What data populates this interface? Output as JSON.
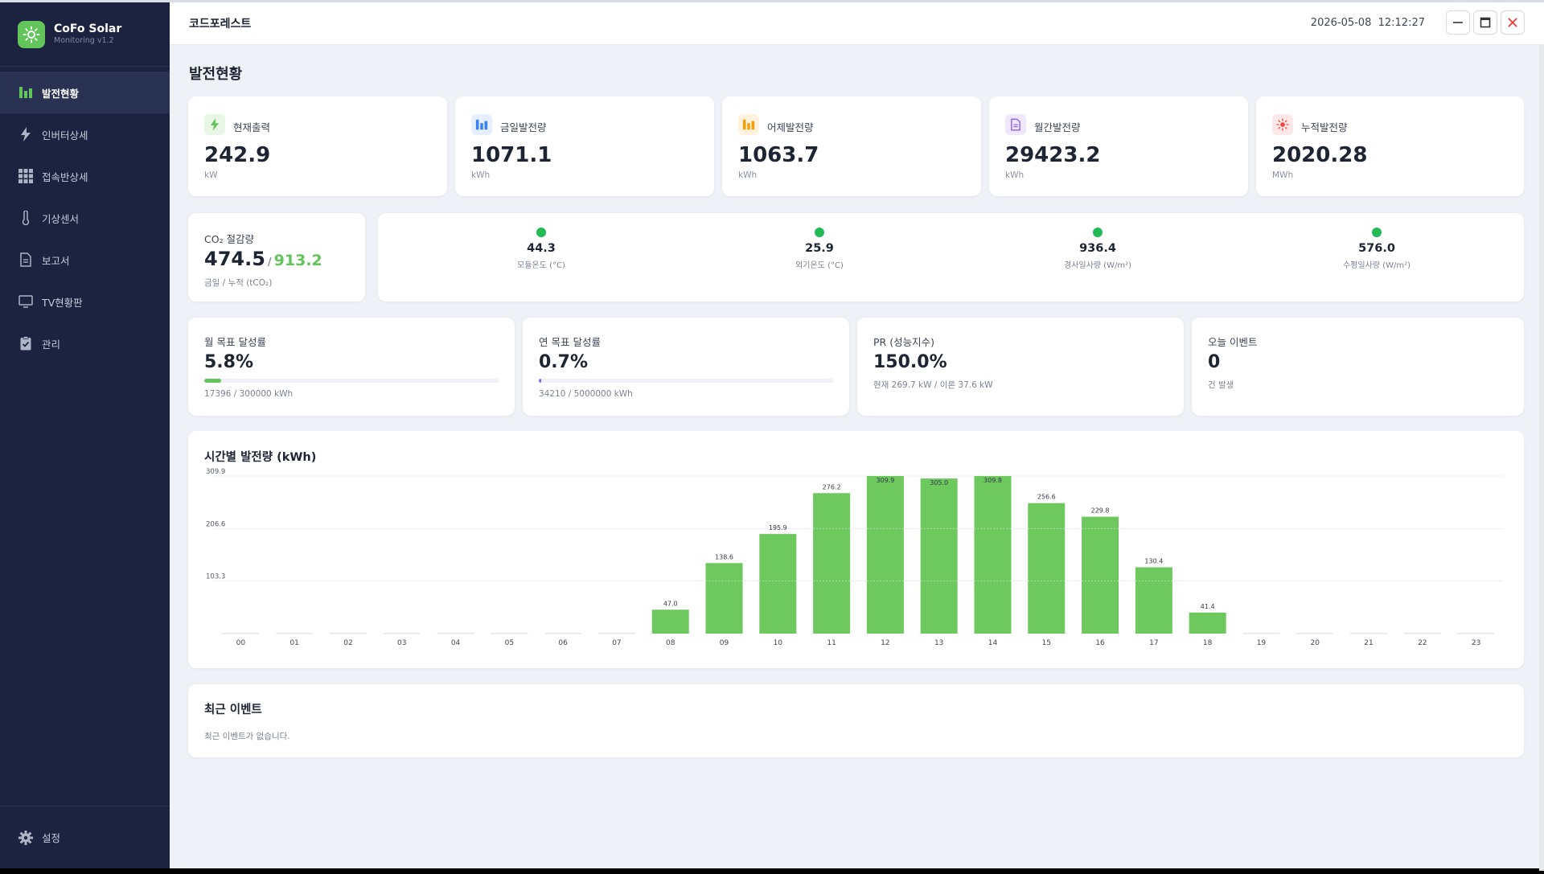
{
  "brand": {
    "title": "CoFo Solar",
    "subtitle": "Monitoring v1.2",
    "accent": "#62c45a"
  },
  "sidebar": {
    "items": [
      {
        "label": "발전현황",
        "icon": "bar-chart-icon",
        "active": true
      },
      {
        "label": "인버터상세",
        "icon": "lightning-icon",
        "active": false
      },
      {
        "label": "접속반상세",
        "icon": "grid-icon",
        "active": false
      },
      {
        "label": "기상센서",
        "icon": "thermometer-icon",
        "active": false
      },
      {
        "label": "보고서",
        "icon": "document-icon",
        "active": false
      },
      {
        "label": "TV현황판",
        "icon": "monitor-icon",
        "active": false
      },
      {
        "label": "관리",
        "icon": "clipboard-check-icon",
        "active": false
      }
    ],
    "settings_label": "설정"
  },
  "topbar": {
    "title": "코드포레스트",
    "datetime": "2026-05-08  12:12:27"
  },
  "page": {
    "title": "발전현황"
  },
  "stats": [
    {
      "label": "현재출력",
      "value": "242.9",
      "unit": "kW",
      "icon": "lightning-icon",
      "color": "#62c45a"
    },
    {
      "label": "금일발전량",
      "value": "1071.1",
      "unit": "kWh",
      "icon": "bar-chart-icon",
      "color": "#3b82f6"
    },
    {
      "label": "어제발전량",
      "value": "1063.7",
      "unit": "kWh",
      "icon": "bar-chart-icon",
      "color": "#f59e0b"
    },
    {
      "label": "월간발전량",
      "value": "29423.2",
      "unit": "kWh",
      "icon": "document-icon",
      "color": "#8b5cf6"
    },
    {
      "label": "누적발전량",
      "value": "2020.28",
      "unit": "MWh",
      "icon": "sun-icon",
      "color": "#ef4444"
    }
  ],
  "co2": {
    "label": "CO₂ 절감량",
    "today": "474.5",
    "separator": "/",
    "total": "913.2",
    "unit_label": "금일 / 누적 (tCO₂)"
  },
  "sensors": [
    {
      "value": "44.3",
      "label": "모듈온도 (°C)",
      "status_color": "#22bb55"
    },
    {
      "value": "25.9",
      "label": "외기온도 (°C)",
      "status_color": "#22bb55"
    },
    {
      "value": "936.4",
      "label": "경사일사량 (W/m²)",
      "status_color": "#22bb55"
    },
    {
      "value": "576.0",
      "label": "수평일사량 (W/m²)",
      "status_color": "#22bb55"
    }
  ],
  "kpis": {
    "monthly": {
      "label": "월 목표 달성률",
      "value": "5.8%",
      "progress": 0.058,
      "detail": "17396 / 300000 kWh"
    },
    "yearly": {
      "label": "연 목표 달성률",
      "value": "0.7%",
      "progress": 0.007,
      "detail": "34210 / 5000000 kWh"
    },
    "pr": {
      "label": "PR (성능지수)",
      "value": "150.0%",
      "detail": "현재 269.7 kW / 이론 37.6 kW"
    },
    "events_today": {
      "label": "오늘 이벤트",
      "value": "0",
      "detail": "건 발생"
    }
  },
  "chart_data": {
    "type": "bar",
    "title": "시간별 발전량 (kWh)",
    "categories": [
      "00",
      "01",
      "02",
      "03",
      "04",
      "05",
      "06",
      "07",
      "08",
      "09",
      "10",
      "11",
      "12",
      "13",
      "14",
      "15",
      "16",
      "17",
      "18",
      "19",
      "20",
      "21",
      "22",
      "23"
    ],
    "values": [
      0,
      0,
      0,
      0,
      0,
      0,
      0,
      0,
      47.0,
      138.6,
      195.9,
      276.2,
      309.9,
      305.0,
      309.8,
      256.6,
      229.8,
      130.4,
      41.4,
      0,
      0,
      0,
      0,
      0
    ],
    "value_labels": [
      "",
      "",
      "",
      "",
      "",
      "",
      "",
      "",
      "47.0",
      "138.6",
      "195.9",
      "276.2",
      "309.9",
      "305.0",
      "309.8",
      "256.6",
      "229.8",
      "130.4",
      "41.4",
      "",
      "",
      "",
      "",
      ""
    ],
    "ytick_labels": [
      "309.9",
      "206.6",
      "103.3"
    ],
    "ytick_values": [
      309.9,
      206.6,
      103.3
    ],
    "ylim": [
      0,
      309.9
    ],
    "bar_color": "#6dc85e",
    "grid": true
  },
  "recent_events": {
    "title": "최근 이벤트",
    "empty_message": "최근 이벤트가 없습니다."
  }
}
